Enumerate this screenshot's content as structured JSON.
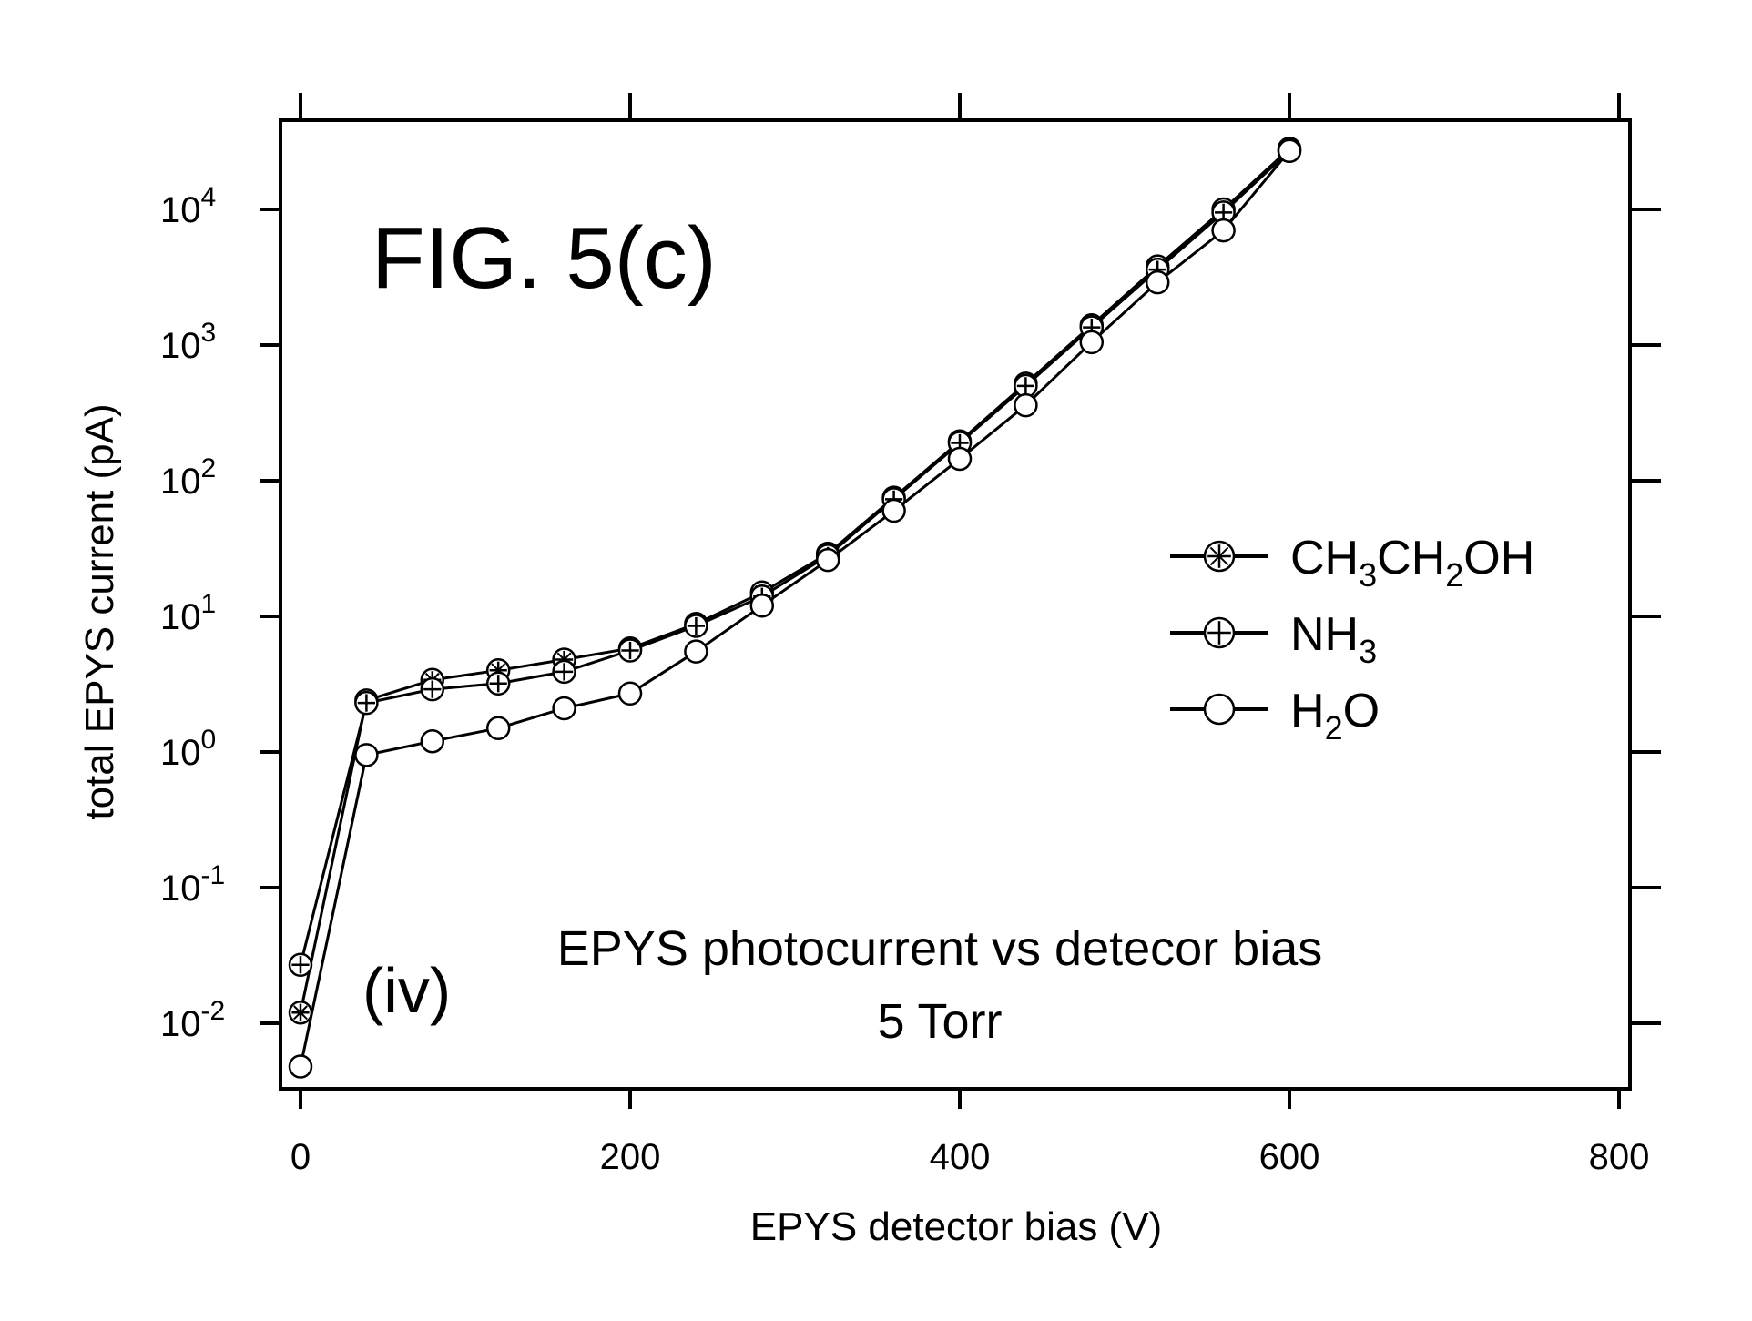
{
  "chart_data": {
    "type": "line",
    "title": "FIG. 5(c)",
    "panel_label": "(iv)",
    "annotation": [
      "EPYS photocurrent vs detecor bias",
      "5 Torr"
    ],
    "xlabel": "EPYS detector bias (V)",
    "ylabel": "total EPYS current (pA)",
    "xlim": [
      -20,
      810
    ],
    "xticks": [
      0,
      200,
      400,
      600,
      800
    ],
    "yscale": "log",
    "ylim": [
      0.0045,
      45000
    ],
    "yticks": [
      {
        "value": 0.01,
        "base": "10",
        "exp": "-2"
      },
      {
        "value": 0.1,
        "base": "10",
        "exp": "-1"
      },
      {
        "value": 1,
        "base": "10",
        "exp": "0"
      },
      {
        "value": 10,
        "base": "10",
        "exp": "1"
      },
      {
        "value": 100,
        "base": "10",
        "exp": "2"
      },
      {
        "value": 1000,
        "base": "10",
        "exp": "3"
      },
      {
        "value": 10000,
        "base": "10",
        "exp": "4"
      }
    ],
    "legend_position": "center-right",
    "series": [
      {
        "name": "CH3CH2OH",
        "legend": {
          "a": "CH",
          "s1": "3",
          "b": "CH",
          "s2": "2",
          "c": "OH"
        },
        "marker": "star-circle",
        "x": [
          0,
          40,
          80,
          120,
          160,
          200,
          240,
          280,
          320,
          360,
          400,
          440,
          480,
          520,
          560,
          600
        ],
        "y": [
          0.012,
          2.4,
          3.4,
          4.0,
          4.8,
          5.8,
          8.8,
          15,
          29,
          75,
          195,
          520,
          1400,
          3800,
          10000,
          28000
        ]
      },
      {
        "name": "NH3",
        "legend": {
          "a": "NH",
          "s1": "3",
          "b": "",
          "s2": "",
          "c": ""
        },
        "marker": "plus-circle",
        "x": [
          0,
          40,
          80,
          120,
          160,
          200,
          240,
          280,
          320,
          360,
          400,
          440,
          480,
          520,
          560,
          600
        ],
        "y": [
          0.027,
          2.3,
          2.9,
          3.2,
          3.9,
          5.6,
          8.5,
          14,
          28,
          73,
          190,
          500,
          1350,
          3600,
          9500,
          27000
        ]
      },
      {
        "name": "H2O",
        "legend": {
          "a": "H",
          "s1": "2",
          "b": "O",
          "s2": "",
          "c": ""
        },
        "marker": "circle",
        "x": [
          0,
          40,
          80,
          120,
          160,
          200,
          240,
          280,
          320,
          360,
          400,
          440,
          480,
          520,
          560,
          600
        ],
        "y": [
          0.0048,
          0.95,
          1.2,
          1.5,
          2.1,
          2.7,
          5.5,
          12,
          26,
          60,
          145,
          360,
          1050,
          2900,
          7000,
          27000
        ]
      }
    ]
  }
}
